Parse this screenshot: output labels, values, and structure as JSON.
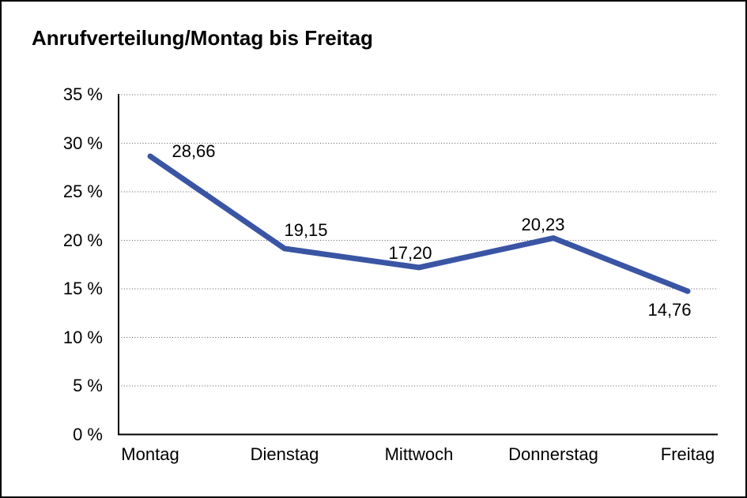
{
  "window": {
    "background_color": "#ffffff",
    "border_color": "#000000"
  },
  "chart_data": {
    "type": "line",
    "title": "Anrufverteilung/Montag bis Freitag",
    "categories": [
      "Montag",
      "Dienstag",
      "Mittwoch",
      "Donnerstag",
      "Freitag"
    ],
    "values": [
      28.66,
      19.15,
      17.2,
      20.23,
      14.76
    ],
    "value_labels": [
      "28,66",
      "19,15",
      "17,20",
      "20,23",
      "14,76"
    ],
    "ytick_labels": [
      "35 %",
      "30 %",
      "25 %",
      "20 %",
      "15 %",
      "10 %",
      "5 %",
      "0 %"
    ],
    "ytick_values": [
      35,
      30,
      25,
      20,
      15,
      10,
      5,
      0
    ],
    "ylim": [
      0,
      35
    ],
    "ytick_step": 5,
    "xlabel": "",
    "ylabel": "",
    "grid": "horizontal-dotted",
    "legend": "none",
    "line_color": "#3a55a4",
    "text_color": "#000000",
    "axis_color": "#000000"
  }
}
